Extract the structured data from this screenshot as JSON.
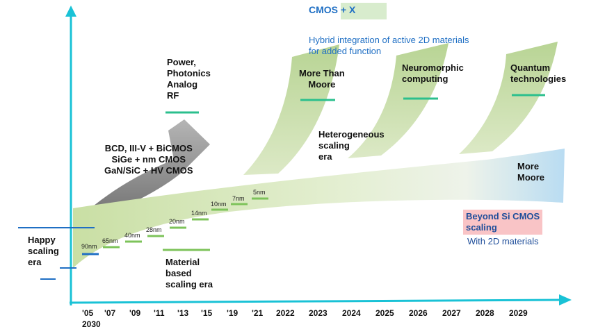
{
  "colors": {
    "axis": "#19c2d6",
    "band_green": "#cfe3b0",
    "band_blue": "#c7e2f4",
    "gray_arrow": "#9a9a9a",
    "node_green": "#7dc35a",
    "teal_bar": "#2bbf8d",
    "blue_bar": "#1f6fc4",
    "cmos_x_box": "#d8eccd",
    "pink_box": "#f9c4c6",
    "text_blue": "#1f6fc4",
    "text_darkblue": "#1f4e9a"
  },
  "cmos_x": {
    "title": "CMOS + X",
    "lines": [
      "Hybrid integration of active 2D materials",
      "for added function"
    ]
  },
  "power_label": [
    "Power,",
    "Photonics",
    "Analog",
    "RF"
  ],
  "bicmos_label": [
    "BCD, III-V + BiCMOS",
    "SiGe + nm CMOS",
    "GaN/SiC + HV CMOS"
  ],
  "more_than_moore": [
    "More Than",
    "Moore"
  ],
  "neuromorphic": [
    "Neuromorphic",
    "computing"
  ],
  "quantum": [
    "Quantum",
    "technologies"
  ],
  "heterogeneous": [
    "Heterogeneous",
    "scaling",
    "era"
  ],
  "more_moore": [
    "More",
    "Moore"
  ],
  "beyond_si": {
    "title_lines": [
      "Beyond Si CMOS",
      "scaling"
    ],
    "subtitle": "With 2D materials"
  },
  "happy": [
    "Happy",
    "scaling",
    "era"
  ],
  "material": [
    "Material",
    "based",
    "scaling era"
  ],
  "nodes": [
    "90nm",
    "65nm",
    "40nm",
    "28nm",
    "20nm",
    "14nm",
    "10nm",
    "7nm",
    "5nm"
  ],
  "x_ticks": [
    "'05",
    "'07",
    "'09",
    "'11",
    "'13",
    "'15",
    "'19",
    "'21",
    "2022",
    "2023",
    "2024",
    "2025",
    "2026",
    "2027",
    "2028",
    "2029"
  ],
  "x_tick_extra": "2030"
}
